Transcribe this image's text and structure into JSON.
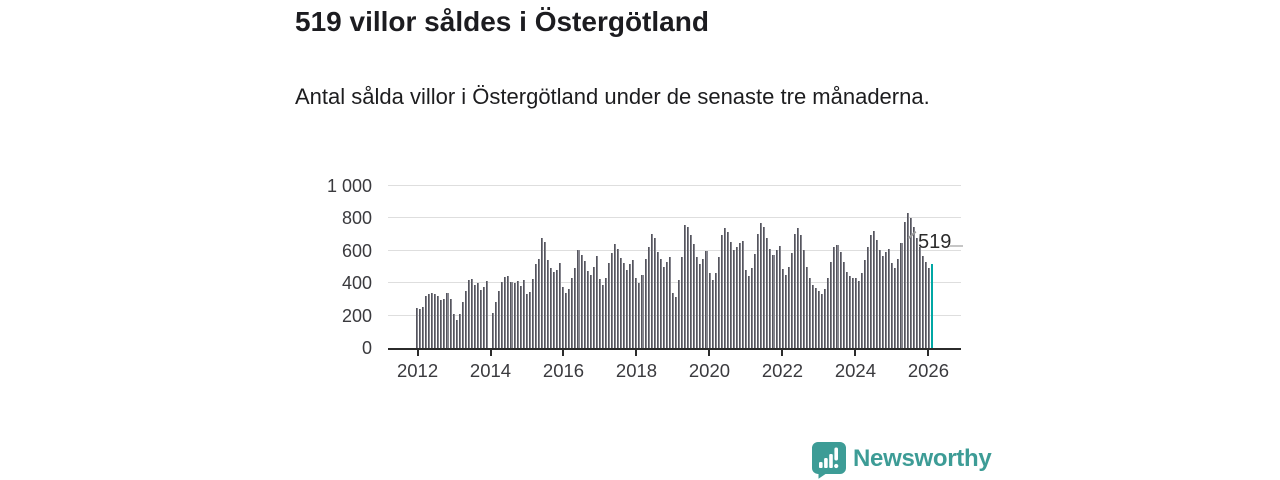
{
  "header": {
    "title": "519 villor såldes i Östergötland",
    "subtitle": "Antal sålda villor i Östergötland under de senaste tre månaderna."
  },
  "chart_data": {
    "type": "bar",
    "title": "519 villor såldes i Östergötland",
    "xlabel": "",
    "ylabel": "",
    "ylim": [
      0,
      1000
    ],
    "grid": true,
    "y_ticks": [
      {
        "value": 0,
        "label": "0"
      },
      {
        "value": 200,
        "label": "200"
      },
      {
        "value": 400,
        "label": "400"
      },
      {
        "value": 600,
        "label": "600"
      },
      {
        "value": 800,
        "label": "800"
      },
      {
        "value": 1000,
        "label": "1 000"
      }
    ],
    "x_tick_years": [
      "2012",
      "2014",
      "2016",
      "2018",
      "2020",
      "2022",
      "2024",
      "2026"
    ],
    "start_year": 2012,
    "months_per_bar": 1,
    "values": [
      245,
      238,
      252,
      322,
      333,
      340,
      333,
      318,
      296,
      300,
      338,
      302,
      208,
      170,
      212,
      282,
      352,
      420,
      428,
      390,
      404,
      358,
      374,
      416,
      0,
      215,
      282,
      350,
      405,
      438,
      442,
      408,
      400,
      412,
      382,
      418,
      332,
      345,
      425,
      518,
      552,
      678,
      652,
      545,
      492,
      470,
      482,
      525,
      378,
      342,
      362,
      432,
      492,
      605,
      572,
      535,
      478,
      452,
      502,
      565,
      428,
      392,
      432,
      522,
      585,
      645,
      612,
      558,
      522,
      482,
      518,
      545,
      432,
      402,
      448,
      548,
      622,
      702,
      682,
      592,
      548,
      502,
      532,
      562,
      340,
      315,
      420,
      560,
      760,
      745,
      700,
      640,
      560,
      520,
      550,
      600,
      462,
      420,
      465,
      560,
      700,
      742,
      718,
      652,
      602,
      622,
      648,
      660,
      482,
      445,
      492,
      582,
      702,
      772,
      748,
      682,
      612,
      572,
      602,
      632,
      488,
      452,
      498,
      588,
      702,
      738,
      695,
      602,
      502,
      432,
      392,
      372,
      352,
      335,
      362,
      432,
      532,
      622,
      638,
      592,
      532,
      472,
      445,
      432,
      432,
      412,
      462,
      542,
      622,
      698,
      722,
      668,
      608,
      568,
      592,
      612,
      522,
      492,
      548,
      648,
      778,
      832,
      805,
      745,
      682,
      622,
      568,
      528,
      492,
      519
    ],
    "highlight_last": true,
    "annotation": {
      "text": "519",
      "value": 519
    },
    "colors": {
      "bar_fill": "#85858d",
      "bar_edge": "#55555e",
      "highlight": "#00a7a4",
      "gridline": "#dedede",
      "axis": "#2b2b2b",
      "tick_text": "#3a3a3e"
    }
  },
  "footer": {
    "brand": "Newsworthy",
    "brand_color": "#3d9c96"
  }
}
